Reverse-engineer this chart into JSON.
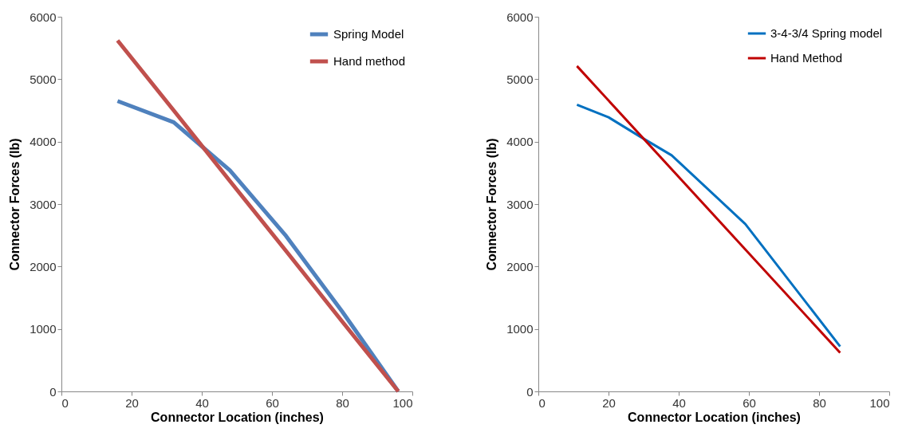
{
  "chart_data": [
    {
      "type": "line",
      "xlabel": "Connector Location (inches)",
      "ylabel": "Connector Forces (lb)",
      "xlim": [
        0,
        100
      ],
      "xticks": [
        0,
        20,
        40,
        60,
        80,
        100
      ],
      "ylim": [
        0,
        6000
      ],
      "yticks": [
        0,
        1000,
        2000,
        3000,
        4000,
        5000,
        6000
      ],
      "legend": "top right",
      "series": [
        {
          "name": "Spring Model",
          "color": "#4f81bd",
          "x": [
            16,
            32,
            48,
            64,
            80,
            96
          ],
          "values": [
            4650,
            4310,
            3540,
            2490,
            1280,
            0
          ]
        },
        {
          "name": "Hand method",
          "color": "#c0504d",
          "x": [
            16,
            32,
            48,
            64,
            80,
            96
          ],
          "values": [
            5620,
            4500,
            3370,
            2250,
            1120,
            0
          ]
        }
      ]
    },
    {
      "type": "line",
      "xlabel": "Connector Location (inches)",
      "ylabel": "Connector Forces (lb)",
      "xlim": [
        0,
        100
      ],
      "xticks": [
        0,
        20,
        40,
        60,
        80,
        100
      ],
      "ylim": [
        0,
        6000
      ],
      "yticks": [
        0,
        1000,
        2000,
        3000,
        4000,
        5000,
        6000
      ],
      "legend": "top right",
      "series": [
        {
          "name": "3-4-3/4 Spring model",
          "color": "#0070c0",
          "x": [
            11,
            20,
            29,
            38,
            59,
            86
          ],
          "values": [
            4590,
            4390,
            4080,
            3780,
            2680,
            720
          ]
        },
        {
          "name": "Hand Method",
          "color": "#c00000",
          "x": [
            11,
            86
          ],
          "values": [
            5210,
            620
          ]
        }
      ]
    }
  ]
}
